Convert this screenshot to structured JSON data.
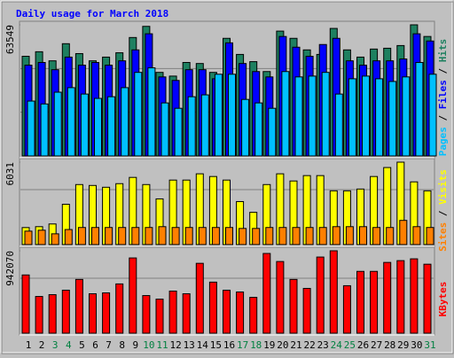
{
  "chart_data": [
    {
      "type": "bar",
      "title": "Daily usage for March 2018",
      "legend_separator": " / ",
      "categories": [
        "1",
        "2",
        "3",
        "4",
        "5",
        "6",
        "7",
        "8",
        "9",
        "10",
        "11",
        "12",
        "13",
        "14",
        "15",
        "16",
        "17",
        "18",
        "19",
        "20",
        "21",
        "22",
        "23",
        "24",
        "25",
        "26",
        "27",
        "28",
        "29",
        "30",
        "31"
      ],
      "category_colors": [
        "#000000",
        "#000000",
        "#008040",
        "#008040",
        "#000000",
        "#000000",
        "#000000",
        "#000000",
        "#000000",
        "#008040",
        "#008040",
        "#000000",
        "#000000",
        "#000000",
        "#000000",
        "#000000",
        "#008040",
        "#008040",
        "#000000",
        "#000000",
        "#000000",
        "#000000",
        "#000000",
        "#008040",
        "#008040",
        "#000000",
        "#000000",
        "#000000",
        "#000000",
        "#000000",
        "#008040"
      ],
      "ylim": [
        0,
        63549
      ],
      "yticks": [
        63549
      ],
      "grid": [
        21183,
        42366
      ],
      "series": [
        {
          "name": "Pages",
          "color": "#00c0ff",
          "values": [
            26600,
            25200,
            30900,
            33100,
            30000,
            27900,
            28700,
            33100,
            40500,
            42700,
            25700,
            23100,
            28700,
            29600,
            39600,
            39600,
            27400,
            25700,
            23100,
            40900,
            38300,
            38700,
            40500,
            30000,
            37400,
            38700,
            37400,
            36100,
            38300,
            45300,
            39600
          ]
        },
        {
          "name": "Files",
          "color": "#0000ff",
          "values": [
            44000,
            45300,
            41800,
            47900,
            44000,
            45300,
            44000,
            46100,
            51400,
            59200,
            38300,
            36600,
            41800,
            41800,
            37400,
            54800,
            44800,
            40900,
            38300,
            57900,
            52700,
            48300,
            54000,
            57000,
            46100,
            44000,
            46100,
            46100,
            47000,
            59200,
            55700
          ]
        },
        {
          "name": "Hits",
          "color": "#1e8060",
          "values": [
            48300,
            50500,
            46100,
            54400,
            49600,
            46100,
            47900,
            50000,
            57400,
            62800,
            40500,
            38700,
            45300,
            44800,
            40500,
            57000,
            49200,
            45700,
            40900,
            60500,
            57000,
            51400,
            49200,
            61800,
            51400,
            47900,
            51800,
            52200,
            53500,
            63549,
            57900
          ]
        }
      ]
    },
    {
      "type": "bar",
      "ylim": [
        0,
        6031
      ],
      "yticks": [
        6031
      ],
      "grid": [
        4021
      ],
      "series": [
        {
          "name": "Sites",
          "color": "#ff8000",
          "values": [
            983,
            1050,
            787,
            1100,
            1250,
            1250,
            1250,
            1250,
            1250,
            1250,
            1311,
            1250,
            1250,
            1250,
            1250,
            1250,
            1180,
            1180,
            1250,
            1250,
            1250,
            1250,
            1250,
            1311,
            1311,
            1311,
            1250,
            1250,
            1770,
            1311,
            1250
          ]
        },
        {
          "name": "Visits",
          "color": "#ffff00",
          "values": [
            1245,
            1311,
            1508,
            2950,
            4392,
            4326,
            4195,
            4458,
            4916,
            4392,
            3343,
            4720,
            4720,
            5179,
            4982,
            4720,
            3147,
            2360,
            4392,
            5179,
            4654,
            5048,
            5048,
            3933,
            3933,
            4064,
            4982,
            5638,
            6031,
            4589,
            3933
          ]
        }
      ]
    },
    {
      "type": "bar",
      "ylim": [
        0,
        942070
      ],
      "yticks": [
        942070
      ],
      "grid": [
        628047
      ],
      "series": [
        {
          "name": "KBytes",
          "color": "#ff0000",
          "values": [
            665600,
            419800,
            440300,
            491500,
            614400,
            450600,
            460800,
            563200,
            860200,
            430100,
            389100,
            481300,
            450600,
            798700,
            583700,
            491500,
            471000,
            409600,
            911400,
            819200,
            614400,
            512000,
            870400,
            942070,
            542700,
            706600,
            706600,
            809000,
            829400,
            850000,
            788500
          ]
        }
      ]
    }
  ]
}
